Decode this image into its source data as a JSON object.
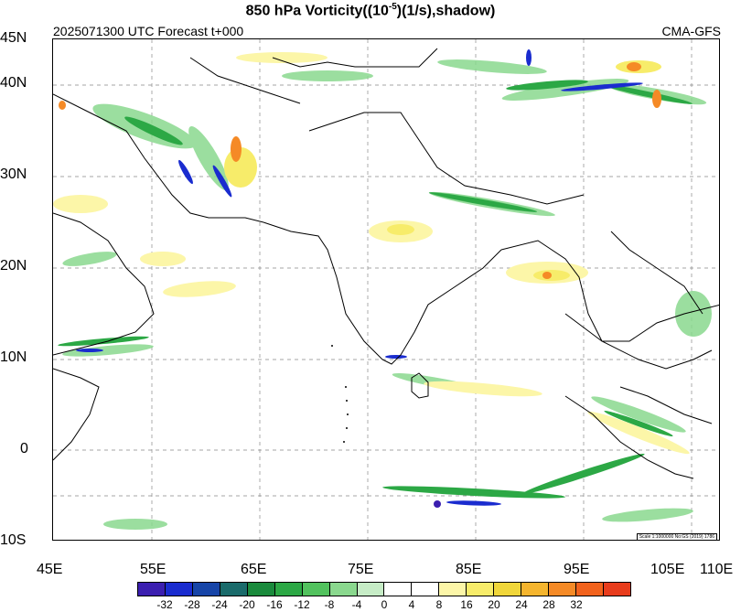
{
  "title_main": "850 hPa Vorticity((10",
  "title_exp": "-5",
  "title_tail": ")(1/s),shadow)",
  "run_label": "2025071300 UTC Forecast t+000",
  "model_label": "CMA-GFS",
  "scale_note": "Scale 1:1000000 No:GS (2019) 1786",
  "lat_labels": [
    "45N",
    "40N",
    "30N",
    "20N",
    "10N",
    "0",
    "10S"
  ],
  "lon_labels": [
    "45E",
    "55E",
    "65E",
    "75E",
    "85E",
    "95E",
    "105E",
    "110E"
  ],
  "colorbar": {
    "colors": [
      "#3b1fb0",
      "#1a2ccf",
      "#1745a8",
      "#1a6b6b",
      "#1a8a3c",
      "#2ca845",
      "#52c25e",
      "#8ad88e",
      "#c6ecc6",
      "#ffffff",
      "#ffffff",
      "#fcf6a8",
      "#f7ec6a",
      "#f0d63a",
      "#f5b52e",
      "#f58a26",
      "#f2621c",
      "#e83c1c"
    ],
    "ticks": [
      "-32",
      "-28",
      "-24",
      "-20",
      "-16",
      "-12",
      "-8",
      "-4",
      "0",
      "4",
      "8",
      "16",
      "20",
      "24",
      "28",
      "32"
    ]
  },
  "chart_data": {
    "type": "heatmap",
    "title": "850 hPa Vorticity((10^-5)(1/s),shadow)",
    "lon_range": [
      45,
      110
    ],
    "lat_range": [
      -10,
      45
    ],
    "grid": true,
    "colorbar_levels": [
      -32,
      -28,
      -24,
      -20,
      -16,
      -12,
      -8,
      -4,
      0,
      4,
      8,
      16,
      20,
      24,
      28,
      32
    ]
  }
}
